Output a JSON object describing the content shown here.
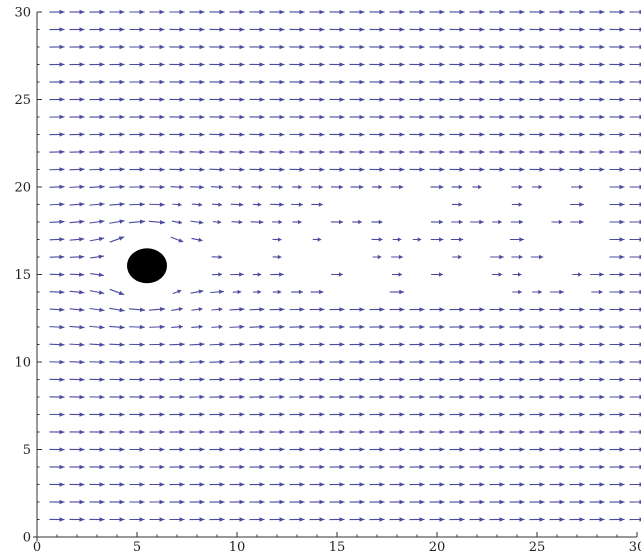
{
  "chart_data": {
    "type": "vector-field",
    "title": "",
    "xlabel": "",
    "ylabel": "",
    "xlim": [
      0,
      30
    ],
    "ylim": [
      0,
      30
    ],
    "x_ticks": [
      0,
      5,
      10,
      15,
      20,
      25,
      30
    ],
    "y_ticks": [
      0,
      5,
      10,
      15,
      20,
      25,
      30
    ],
    "x_tick_labels": [
      "0",
      "5",
      "10",
      "15",
      "20",
      "25",
      "30"
    ],
    "y_tick_labels": [
      "0",
      "5",
      "10",
      "15",
      "20",
      "25",
      "30"
    ],
    "grid": false,
    "legend": "none",
    "arrow_color": "#4b4ba0",
    "obstacle": {
      "shape": "disk",
      "center": [
        5.5,
        15.5
      ],
      "radius": 1.0,
      "color": "#000000"
    },
    "field": {
      "x_samples": [
        1,
        30
      ],
      "y_samples": [
        1,
        30
      ],
      "sample_step": 1,
      "base_flow": [
        1,
        0
      ],
      "wake": {
        "origin": [
          5.5,
          15.5
        ],
        "x_range": [
          7,
          28
        ],
        "y_range": [
          14,
          20
        ],
        "description_note": ""
      }
    }
  }
}
